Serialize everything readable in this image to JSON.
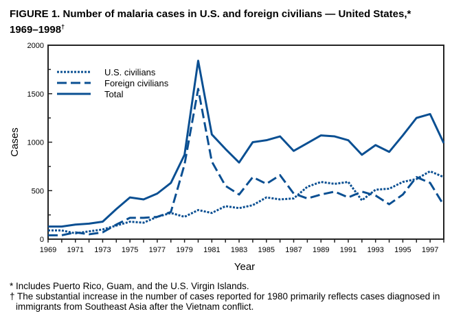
{
  "title": "FIGURE 1. Number of malaria cases in U.S. and foreign civilians — United States,* 1969–1998†",
  "footnotes": [
    "* Includes Puerto Rico, Guam, and the U.S. Virgin Islands.",
    "† The substantial increase in the number of cases reported for 1980 primarily reflects cases diagnosed in immigrants from Southeast Asia after the Vietnam conflict."
  ],
  "chart_data": {
    "type": "line",
    "title": "FIGURE 1. Number of malaria cases in U.S. and foreign civilians — United States,* 1969–1998†",
    "xlabel": "Year",
    "ylabel": "Cases",
    "xlim": [
      1969,
      1998
    ],
    "ylim": [
      0,
      2000
    ],
    "yticks": [
      0,
      500,
      1000,
      1500,
      2000
    ],
    "xtick_labels": [
      "1969",
      "1971",
      "1973",
      "1975",
      "1977",
      "1979",
      "1981",
      "1983",
      "1985",
      "1987",
      "1989",
      "1991",
      "1993",
      "1995",
      "1997"
    ],
    "grid": false,
    "legend_placement": "top-left",
    "color": "#0a4f92",
    "x": [
      1969,
      1970,
      1971,
      1972,
      1973,
      1974,
      1975,
      1976,
      1977,
      1978,
      1979,
      1980,
      1981,
      1982,
      1983,
      1984,
      1985,
      1986,
      1987,
      1988,
      1989,
      1990,
      1991,
      1992,
      1993,
      1994,
      1995,
      1996,
      1997,
      1998
    ],
    "series": [
      {
        "name": "U.S. civilians",
        "style": "dotted",
        "values": [
          90,
          90,
          60,
          80,
          100,
          140,
          180,
          170,
          230,
          270,
          230,
          300,
          270,
          340,
          320,
          350,
          430,
          410,
          420,
          540,
          590,
          570,
          590,
          400,
          510,
          520,
          590,
          620,
          700,
          640
        ]
      },
      {
        "name": "Foreign  civilians",
        "style": "dashed",
        "values": [
          40,
          40,
          70,
          50,
          70,
          150,
          220,
          220,
          230,
          280,
          770,
          1550,
          800,
          550,
          460,
          640,
          570,
          660,
          470,
          420,
          460,
          490,
          430,
          490,
          450,
          360,
          460,
          640,
          580,
          350
        ]
      },
      {
        "name": "Total",
        "style": "solid",
        "values": [
          130,
          130,
          150,
          160,
          180,
          310,
          430,
          410,
          470,
          580,
          870,
          1840,
          1080,
          930,
          790,
          1000,
          1020,
          1060,
          910,
          990,
          1070,
          1060,
          1020,
          870,
          970,
          900,
          1070,
          1250,
          1290,
          990
        ]
      }
    ]
  }
}
